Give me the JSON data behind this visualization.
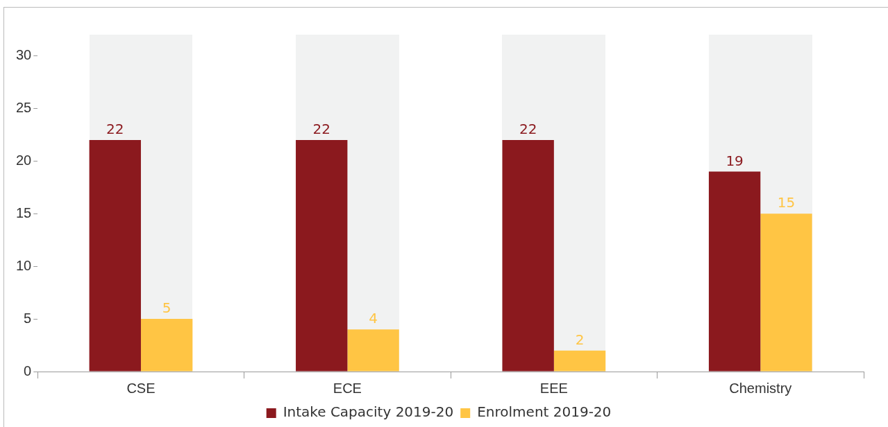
{
  "chart_data": {
    "type": "bar",
    "categories": [
      "CSE",
      "ECE",
      "EEE",
      "Chemistry"
    ],
    "series": [
      {
        "name": "Intake Capacity 2019-20",
        "color": "#8b191e",
        "values": [
          22,
          22,
          22,
          19
        ]
      },
      {
        "name": "Enrolment 2019-20",
        "color": "#ffc544",
        "values": [
          5,
          4,
          2,
          15
        ]
      }
    ],
    "ylim": [
      0,
      32
    ],
    "yticks": [
      0,
      5,
      10,
      15,
      20,
      25,
      30
    ],
    "grid": false,
    "legend": "bottom",
    "data_labels": true
  }
}
